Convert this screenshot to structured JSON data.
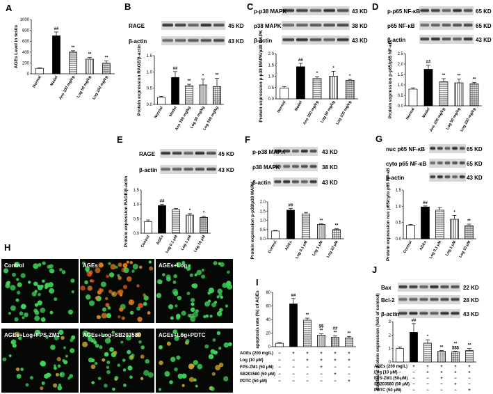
{
  "panels": {
    "A": {
      "letter": "A"
    },
    "B": {
      "letter": "B",
      "blots": [
        {
          "label": "RAGE",
          "kd": "45 KD"
        },
        {
          "label": "β-actin",
          "kd": "43 KD"
        }
      ]
    },
    "C": {
      "letter": "C",
      "blots": [
        {
          "label": "p-p38 MAPK",
          "kd": "43 KD"
        },
        {
          "label": "p38 MAPK",
          "kd": "38 KD"
        },
        {
          "label": "β-actin",
          "kd": "43 KD"
        }
      ]
    },
    "D": {
      "letter": "D",
      "blots": [
        {
          "label": "p-p65 NF-κB",
          "kd": "65 KD"
        },
        {
          "label": "p65 NF-κB",
          "kd": "65 KD"
        },
        {
          "label": "β-actin",
          "kd": "43 KD"
        }
      ]
    },
    "E": {
      "letter": "E",
      "blots": [
        {
          "label": "RAGE",
          "kd": "45 KD"
        },
        {
          "label": "β-actin",
          "kd": "43 KD"
        }
      ]
    },
    "F": {
      "letter": "F",
      "blots": [
        {
          "label": "p-p38 MAPK",
          "kd": "43 KD"
        },
        {
          "label": "p38 MAPK",
          "kd": "38 KD"
        },
        {
          "label": "β-actin",
          "kd": "43 KD"
        }
      ]
    },
    "G": {
      "letter": "G",
      "blots": [
        {
          "label": "nuc p65 NF-κB",
          "kd": "65 KD"
        },
        {
          "label": "cyto p65 NF-κB",
          "kd": "65 KD"
        },
        {
          "label": "β-actin",
          "kd": "43 KD"
        }
      ]
    },
    "H": {
      "letter": "H",
      "images": [
        "Control",
        "AGEs",
        "AGEs+Log",
        "AGEs+Log+FPS-ZM1",
        "AGEs+Log+SB203580",
        "AGEs+Log+PDTC"
      ]
    },
    "I": {
      "letter": "I"
    },
    "J": {
      "letter": "J",
      "blots": [
        {
          "label": "Bax",
          "kd": "22 KD"
        },
        {
          "label": "Bcl-2",
          "kd": "28 KD"
        },
        {
          "label": "β-actin",
          "kd": "43 KD"
        }
      ]
    }
  },
  "treatment_table": {
    "rows": [
      {
        "label": "AGEs (200 mg/L)",
        "marks": [
          "−",
          "+",
          "+",
          "+",
          "+",
          "+"
        ]
      },
      {
        "label": "Log (10 μM)",
        "marks": [
          "−",
          "−",
          "+",
          "+",
          "+",
          "+"
        ]
      },
      {
        "label": "FPS-ZM1 (50 μM)",
        "marks": [
          "−",
          "−",
          "−",
          "+",
          "−",
          "−"
        ]
      },
      {
        "label": "SB203580 (50 μM)",
        "marks": [
          "−",
          "−",
          "−",
          "−",
          "+",
          "−"
        ]
      },
      {
        "label": "PDTC (50 μM)",
        "marks": [
          "−",
          "−",
          "−",
          "−",
          "−",
          "+"
        ]
      }
    ]
  },
  "chart_data": [
    {
      "id": "A",
      "type": "bar",
      "categories": [
        "Normal",
        "Model",
        "Ans 100 mg/kg",
        "Log 50 mg/kg",
        "Log 100 mg/kg"
      ],
      "values": [
        100,
        700,
        400,
        270,
        195
      ],
      "errors": [
        10,
        70,
        25,
        30,
        40
      ],
      "marks": [
        "",
        "##",
        "**",
        "**",
        "**"
      ],
      "ylabel": "AGEs Level in testis",
      "ylim": [
        0,
        1000
      ],
      "yticks": [
        "0",
        "200",
        "400",
        "600",
        "800",
        "1000"
      ],
      "patterns": [
        "white",
        "black",
        "hstripe",
        "vstripe",
        "grid"
      ]
    },
    {
      "id": "B",
      "type": "bar",
      "categories": [
        "Normal",
        "Model",
        "Ans 100 mg/kg",
        "Log 50 mg/kg",
        "Log 100 mg/kg"
      ],
      "values": [
        0.22,
        0.83,
        0.57,
        0.6,
        0.55
      ],
      "errors": [
        0.03,
        0.18,
        0.05,
        0.18,
        0.25
      ],
      "marks": [
        "",
        "##",
        "**",
        "*",
        "**"
      ],
      "ylabel": "Protein expression RAGE/β-actin",
      "ylim": [
        0,
        1.5
      ],
      "yticks": [
        "0.0",
        "0.5",
        "1.0",
        "1.5"
      ],
      "patterns": [
        "white",
        "black",
        "hstripe",
        "vstripe",
        "grid"
      ]
    },
    {
      "id": "C",
      "type": "bar",
      "categories": [
        "Normal",
        "Model",
        "Ans 100 mg/kg",
        "Log 50 mg/kg",
        "Log 100 mg/kg"
      ],
      "values": [
        0.48,
        1.42,
        0.9,
        1.0,
        0.82
      ],
      "errors": [
        0.06,
        0.15,
        0.08,
        0.22,
        0.04
      ],
      "marks": [
        "",
        "##",
        "*",
        "*",
        "*"
      ],
      "ylabel": "Protein expression p-p38 MAPK/p38 MAPK",
      "ylim": [
        0,
        2.0
      ],
      "yticks": [
        "0.0",
        "0.5",
        "1.0",
        "1.5",
        "2.0"
      ],
      "patterns": [
        "white",
        "black",
        "hstripe",
        "vstripe",
        "grid"
      ]
    },
    {
      "id": "D",
      "type": "bar",
      "categories": [
        "Normal",
        "Model",
        "Ans 100 mg/kg",
        "Log 50 mg/kg",
        "Log 100 mg/kg"
      ],
      "values": [
        0.8,
        1.75,
        1.15,
        1.1,
        1.05
      ],
      "errors": [
        0.06,
        0.2,
        0.15,
        0.18,
        0.06
      ],
      "marks": [
        "",
        "##",
        "**",
        "**",
        "**"
      ],
      "ylabel": "Protein expression p-p65/p65 NF-κB",
      "ylim": [
        0,
        2.5
      ],
      "yticks": [
        "0.0",
        "0.5",
        "1.0",
        "1.5",
        "2.0",
        "2.5"
      ],
      "patterns": [
        "white",
        "black",
        "hstripe",
        "vstripe",
        "grid"
      ]
    },
    {
      "id": "E",
      "type": "bar",
      "categories": [
        "Control",
        "AGEs",
        "Log 0.1 μM",
        "Log 1 μM",
        "Log 10 μM"
      ],
      "values": [
        0.4,
        0.96,
        0.82,
        0.63,
        0.55
      ],
      "errors": [
        0.06,
        0.04,
        0.04,
        0.05,
        0.04
      ],
      "marks": [
        "",
        "##",
        "",
        "*",
        "*"
      ],
      "ylabel": "Protein expression RAGE/β-actin",
      "ylim": [
        0,
        1.5
      ],
      "yticks": [
        "0.0",
        "0.5",
        "1.0",
        "1.5"
      ],
      "patterns": [
        "white",
        "black",
        "hstripe",
        "vstripe",
        "grid"
      ]
    },
    {
      "id": "F",
      "type": "bar",
      "categories": [
        "Control",
        "AGEs",
        "Log 0.1 μM",
        "Log 1 μM",
        "Log 10 μM"
      ],
      "values": [
        0.42,
        1.55,
        1.35,
        0.78,
        0.5
      ],
      "errors": [
        0.03,
        0.1,
        0.08,
        0.04,
        0.04
      ],
      "marks": [
        "",
        "##",
        "",
        "**",
        "**"
      ],
      "ylabel": "Protein expression p-p38/p38 MAPK",
      "ylim": [
        0,
        2.0
      ],
      "yticks": [
        "0.0",
        "0.5",
        "1.0",
        "1.5",
        "2.0"
      ],
      "patterns": [
        "white",
        "black",
        "hstripe",
        "vstripe",
        "grid"
      ]
    },
    {
      "id": "G",
      "type": "bar",
      "categories": [
        "Control",
        "AGEs",
        "Log 0.1 μM",
        "Log 1 μM",
        "Log 10 μM"
      ],
      "values": [
        0.42,
        0.98,
        0.88,
        0.6,
        0.4
      ],
      "errors": [
        0.02,
        0.03,
        0.08,
        0.12,
        0.05
      ],
      "marks": [
        "",
        "##",
        "",
        "*",
        "**"
      ],
      "ylabel": "Protein expression nuc p65/cyto p65 NF-κB",
      "ylim": [
        0,
        1.5
      ],
      "yticks": [
        "0.0",
        "0.5",
        "1.0",
        "1.5"
      ],
      "patterns": [
        "white",
        "black",
        "hstripe",
        "vstripe",
        "grid"
      ]
    },
    {
      "id": "I",
      "type": "bar",
      "categories": [
        "1",
        "2",
        "3",
        "4",
        "5",
        "6"
      ],
      "values": [
        5,
        63,
        39,
        17,
        14,
        13
      ],
      "errors": [
        1,
        8,
        3,
        2,
        2,
        2
      ],
      "marks": [
        "",
        "##",
        "**",
        "$$\n**",
        "##\n**",
        "**"
      ],
      "ylabel": "apoptosis rate (%) of AGEs",
      "ylim": [
        0,
        80
      ],
      "yticks": [
        "0",
        "20",
        "40",
        "60",
        "80"
      ],
      "patterns": [
        "white",
        "black",
        "hstripe",
        "vstripe",
        "grid",
        "hstripe"
      ]
    },
    {
      "id": "J",
      "type": "bar",
      "categories": [
        "1",
        "2",
        "3",
        "4",
        "5",
        "6"
      ],
      "values": [
        1.0,
        2.2,
        1.4,
        0.8,
        0.75,
        0.85
      ],
      "errors": [
        0.12,
        0.65,
        0.25,
        0.06,
        0.06,
        0.15
      ],
      "marks": [
        "",
        "##",
        "*",
        "**",
        "**\n$$$",
        "**"
      ],
      "ylabel": "Bax/Bcl-2 protein expression (fold of control)",
      "ylim": [
        0,
        3
      ],
      "yticks": [
        "0",
        "1",
        "2",
        "3"
      ],
      "patterns": [
        "white",
        "black",
        "hstripe",
        "vstripe",
        "grid",
        "hstripe"
      ]
    }
  ]
}
